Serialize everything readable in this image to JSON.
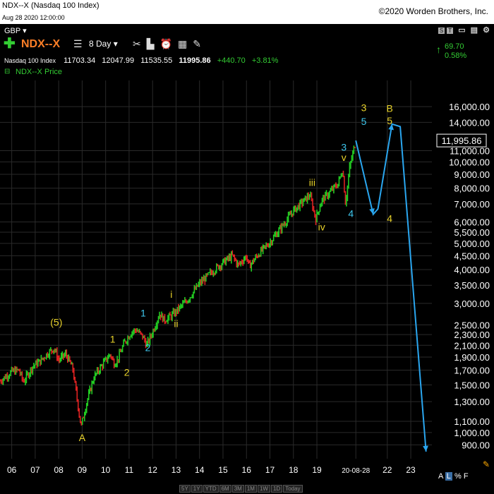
{
  "header": {
    "title": "NDX--X (Nasdaq 100 Index)",
    "date": "Aug 28 2020 12:00:00",
    "copyright": "©2020 Worden Brothers, Inc."
  },
  "toolbar": {
    "currency": "GBP",
    "symbol": "NDX--X",
    "period": "8 Day",
    "quote_label": "Nasdaq 100 Index",
    "open": "11703.34",
    "high": "12047.99",
    "low": "11535.55",
    "last": "11995.86",
    "change": "+440.70",
    "change_pct": "+3.81%",
    "series_label": "NDX--X Price",
    "right_value": "69.70",
    "right_pct": "0.58%",
    "right_buttons": [
      "S",
      "T"
    ]
  },
  "bottom": {
    "periods": [
      "5Y",
      "1Y",
      "YTD",
      "6M",
      "3M",
      "1M",
      "1W",
      "1D",
      "Today"
    ],
    "scale_a": "A",
    "scale_l": "L",
    "scale_pct": "%",
    "scale_f": "F"
  },
  "colors": {
    "price": "#22cc22",
    "down": "#dd2222",
    "wave_yellow": "#e8d22a",
    "wave_cyan": "#3ec7ee",
    "projection": "#2aa6ef"
  },
  "chart_data": {
    "type": "line",
    "y_scale": "log",
    "ylim": [
      800,
      20000
    ],
    "xlim": [
      2005.5,
      2023.9
    ],
    "x_tick_labels": [
      "06",
      "07",
      "08",
      "09",
      "10",
      "11",
      "12",
      "13",
      "14",
      "15",
      "16",
      "17",
      "18",
      "19",
      "20-08-28",
      "22",
      "23"
    ],
    "x_tick_values": [
      2006,
      2007,
      2008,
      2009,
      2010,
      2011,
      2012,
      2013,
      2014,
      2015,
      2016,
      2017,
      2018,
      2019,
      2020.66,
      2022,
      2023
    ],
    "y_tick_labels": [
      "16,000.00",
      "14,000.00",
      "11,000.00",
      "10,000.00",
      "9,000.00",
      "8,000.00",
      "7,000.00",
      "6,000.00",
      "5,500.00",
      "5,000.00",
      "4,500.00",
      "4,000.00",
      "3,500.00",
      "3,000.00",
      "2,500.00",
      "2,300.00",
      "2,100.00",
      "1,900.00",
      "1,700.00",
      "1,500.00",
      "1,300.00",
      "1,100.00",
      "1,000.00",
      "900.00"
    ],
    "y_tick_values": [
      16000,
      14000,
      11000,
      10000,
      9000,
      8000,
      7000,
      6000,
      5500,
      5000,
      4500,
      4000,
      3500,
      3000,
      2500,
      2300,
      2100,
      1900,
      1700,
      1500,
      1300,
      1100,
      1000,
      900
    ],
    "last_price_label": "11,995.86",
    "last_price": 11995.86,
    "series": [
      {
        "name": "NDX--X Price",
        "x": [
          2005.5,
          2006.0,
          2006.3,
          2006.5,
          2006.9,
          2007.2,
          2007.5,
          2007.8,
          2008.0,
          2008.3,
          2008.6,
          2008.8,
          2008.95,
          2009.2,
          2009.5,
          2009.8,
          2010.2,
          2010.35,
          2010.5,
          2010.8,
          2011.1,
          2011.3,
          2011.6,
          2011.75,
          2012.0,
          2012.3,
          2012.5,
          2012.8,
          2013.0,
          2013.5,
          2014.0,
          2014.5,
          2015.0,
          2015.4,
          2015.65,
          2016.0,
          2016.1,
          2016.5,
          2017.0,
          2017.5,
          2018.0,
          2018.7,
          2018.95,
          2019.2,
          2019.6,
          2019.9,
          2020.1,
          2020.22,
          2020.4,
          2020.66
        ],
        "y": [
          1550,
          1680,
          1700,
          1540,
          1760,
          1830,
          1950,
          2050,
          1850,
          1950,
          1720,
          1300,
          1050,
          1300,
          1600,
          1750,
          1950,
          1800,
          1850,
          2150,
          2350,
          2400,
          2250,
          2100,
          2350,
          2750,
          2600,
          2700,
          2800,
          3100,
          3550,
          3900,
          4250,
          4500,
          4150,
          4500,
          4100,
          4550,
          5050,
          5750,
          6600,
          7550,
          6150,
          7200,
          7800,
          8300,
          9400,
          7000,
          9600,
          11995.86
        ]
      }
    ],
    "projection": {
      "x": [
        2020.66,
        2021.4,
        2021.6,
        2022.2,
        2022.55,
        2023.65
      ],
      "y": [
        11995.86,
        6400,
        6700,
        13800,
        13500,
        850
      ]
    },
    "annotations": [
      {
        "text": "(5)",
        "x": 2007.9,
        "y": 2480,
        "color": "yellow"
      },
      {
        "text": "A",
        "x": 2009.0,
        "y": 930,
        "color": "yellow"
      },
      {
        "text": "1",
        "x": 2010.3,
        "y": 2150,
        "color": "yellow"
      },
      {
        "text": "2",
        "x": 2010.9,
        "y": 1620,
        "color": "yellow"
      },
      {
        "text": "1",
        "x": 2011.6,
        "y": 2680,
        "color": "cyan"
      },
      {
        "text": "2",
        "x": 2011.8,
        "y": 2000,
        "color": "cyan"
      },
      {
        "text": "i",
        "x": 2012.8,
        "y": 3150,
        "color": "yellow"
      },
      {
        "text": "ii",
        "x": 2013.0,
        "y": 2450,
        "color": "yellow"
      },
      {
        "text": "iii",
        "x": 2018.8,
        "y": 8150,
        "color": "yellow"
      },
      {
        "text": "iv",
        "x": 2019.2,
        "y": 5580,
        "color": "yellow"
      },
      {
        "text": "3",
        "x": 2020.15,
        "y": 11000,
        "color": "cyan"
      },
      {
        "text": "v",
        "x": 2020.15,
        "y": 10100,
        "color": "yellow"
      },
      {
        "text": "4",
        "x": 2020.45,
        "y": 6250,
        "color": "cyan"
      },
      {
        "text": "3",
        "x": 2021.0,
        "y": 15400,
        "color": "yellow"
      },
      {
        "text": "5",
        "x": 2021.0,
        "y": 13700,
        "color": "cyan"
      },
      {
        "text": "B",
        "x": 2022.1,
        "y": 15300,
        "color": "yellow"
      },
      {
        "text": "5",
        "x": 2022.1,
        "y": 13800,
        "color": "yellow"
      },
      {
        "text": "4",
        "x": 2022.1,
        "y": 6000,
        "color": "yellow"
      }
    ]
  }
}
